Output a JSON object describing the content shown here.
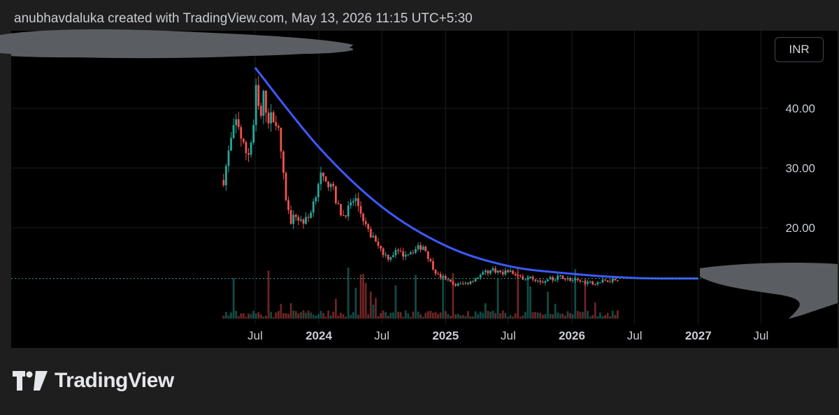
{
  "header": {
    "attribution": "anubhavdaluka created with TradingView.com, May 13, 2026 11:15 UTC+5:30"
  },
  "currency_label": "INR",
  "brand": {
    "name": "TradingView"
  },
  "colors": {
    "up": "#26a69a",
    "down": "#ef5350",
    "curve": "#3d5afe",
    "last_price_line": "#26a69a",
    "grid": "#1b1d22",
    "axis_text": "#c9ccd3",
    "redaction": "#5a5d62"
  },
  "icons": [
    "tradingview-logo-icon"
  ],
  "chart_data": {
    "type": "candlestick",
    "title": "",
    "y_ticks": [
      20,
      30,
      40
    ],
    "y_tick_labels": [
      "20.00",
      "30.00",
      "40.00"
    ],
    "x_ticks": [
      {
        "label": "Jul",
        "bold": false,
        "date": "2023-07-01"
      },
      {
        "label": "2024",
        "bold": true,
        "date": "2024-01-01"
      },
      {
        "label": "Jul",
        "bold": false,
        "date": "2024-07-01"
      },
      {
        "label": "2025",
        "bold": true,
        "date": "2025-01-01"
      },
      {
        "label": "Jul",
        "bold": false,
        "date": "2025-07-01"
      },
      {
        "label": "2026",
        "bold": true,
        "date": "2026-01-01"
      },
      {
        "label": "Jul",
        "bold": false,
        "date": "2026-07-01"
      },
      {
        "label": "2027",
        "bold": true,
        "date": "2027-01-01"
      },
      {
        "label": "Jul",
        "bold": false,
        "date": "2027-07-01"
      }
    ],
    "last_price": 11.5,
    "grid": true,
    "price_path": [
      [
        "2023-04-01",
        28
      ],
      [
        "2023-04-20",
        34
      ],
      [
        "2023-05-10",
        38.5
      ],
      [
        "2023-05-25",
        34
      ],
      [
        "2023-06-10",
        32
      ],
      [
        "2023-06-25",
        36
      ],
      [
        "2023-07-05",
        44
      ],
      [
        "2023-07-15",
        37
      ],
      [
        "2023-07-25",
        42
      ],
      [
        "2023-08-10",
        38
      ],
      [
        "2023-08-25",
        39
      ],
      [
        "2023-09-10",
        35
      ],
      [
        "2023-09-25",
        26
      ],
      [
        "2023-10-10",
        21
      ],
      [
        "2023-10-25",
        22
      ],
      [
        "2023-11-15",
        21
      ],
      [
        "2023-12-01",
        21.5
      ],
      [
        "2023-12-20",
        25
      ],
      [
        "2024-01-05",
        29
      ],
      [
        "2024-01-20",
        27
      ],
      [
        "2024-02-05",
        28
      ],
      [
        "2024-02-20",
        24
      ],
      [
        "2024-03-10",
        22
      ],
      [
        "2024-03-25",
        23
      ],
      [
        "2024-04-15",
        25
      ],
      [
        "2024-05-05",
        22
      ],
      [
        "2024-05-25",
        19
      ],
      [
        "2024-06-15",
        18
      ],
      [
        "2024-07-01",
        16
      ],
      [
        "2024-07-20",
        15
      ],
      [
        "2024-08-10",
        16
      ],
      [
        "2024-08-30",
        15.5
      ],
      [
        "2024-09-20",
        16
      ],
      [
        "2024-10-10",
        16.5
      ],
      [
        "2024-10-30",
        17
      ],
      [
        "2024-11-20",
        14
      ],
      [
        "2024-12-10",
        12
      ],
      [
        "2025-01-01",
        11.5
      ],
      [
        "2025-01-20",
        10.5
      ],
      [
        "2025-02-10",
        10.5
      ],
      [
        "2025-03-05",
        10.8
      ],
      [
        "2025-03-30",
        11.6
      ],
      [
        "2025-04-25",
        12.5
      ],
      [
        "2025-05-20",
        13
      ],
      [
        "2025-06-10",
        12.5
      ],
      [
        "2025-07-01",
        12.8
      ],
      [
        "2025-07-25",
        12
      ],
      [
        "2025-08-20",
        11.5
      ],
      [
        "2025-09-15",
        11.5
      ],
      [
        "2025-10-10",
        11
      ],
      [
        "2025-11-05",
        11.5
      ],
      [
        "2025-12-01",
        11.8
      ],
      [
        "2026-01-01",
        11.2
      ],
      [
        "2026-02-01",
        11
      ],
      [
        "2026-03-01",
        10.8
      ],
      [
        "2026-04-01",
        11
      ],
      [
        "2026-05-13",
        11.5
      ]
    ],
    "candle_count": 159,
    "curve": [
      [
        "2023-07-01",
        46.8
      ],
      [
        "2024-01-01",
        33.5
      ],
      [
        "2024-07-01",
        23.5
      ],
      [
        "2025-01-01",
        17
      ],
      [
        "2025-07-01",
        13.6
      ],
      [
        "2026-01-01",
        12.3
      ],
      [
        "2026-07-01",
        11.6
      ],
      [
        "2027-01-01",
        11.5
      ]
    ],
    "volume": true
  }
}
